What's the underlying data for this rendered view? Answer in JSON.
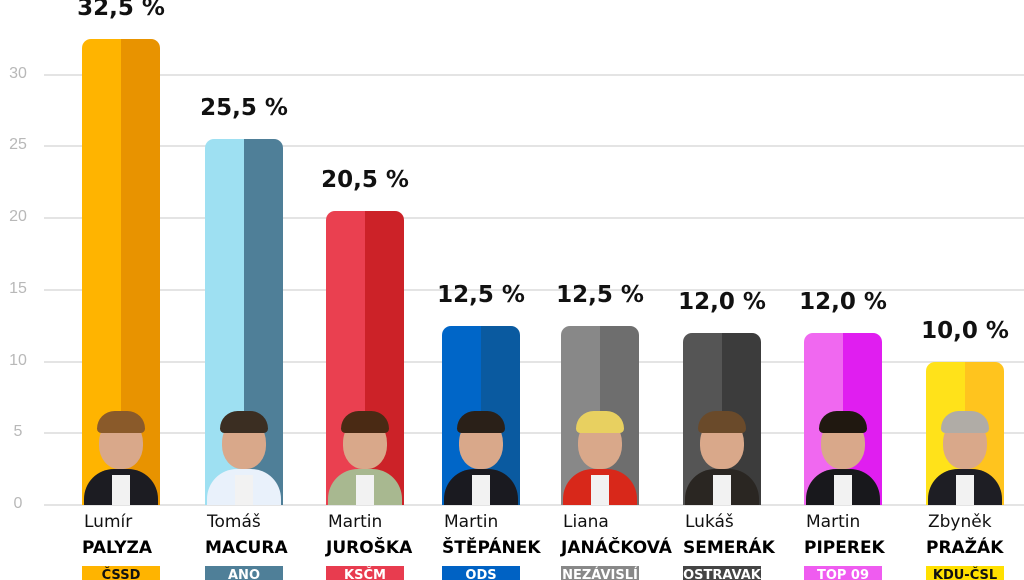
{
  "chart_data": {
    "type": "bar",
    "title": "",
    "xlabel": "",
    "ylabel": "",
    "ylim": [
      0,
      32.5
    ],
    "yticks": [
      0,
      5,
      10,
      15,
      20,
      25,
      30
    ],
    "grid": true,
    "categories": [
      "Lumír PALYZA",
      "Tomáš MACURA",
      "Martin JUROŠKA",
      "Martin ŠTĚPÁNEK",
      "Liana JANÁČKOVÁ",
      "Lukáš SEMERÁK",
      "Martin PIPEREK",
      "Zbyněk PRAŽÁK"
    ],
    "values": [
      32.5,
      25.5,
      20.5,
      12.5,
      12.5,
      12.0,
      12.0,
      10.0
    ],
    "value_labels": [
      "32,5 %",
      "25,5 %",
      "20,5 %",
      "12,5 %",
      "12,5 %",
      "12,0 %",
      "12,0 %",
      "10,0 %"
    ]
  },
  "ticks": [
    "0",
    "5",
    "10",
    "15",
    "20",
    "25",
    "30"
  ],
  "candidates": [
    {
      "first": "Lumír",
      "last": "PALYZA",
      "party": "ČSSD",
      "value": 32.5,
      "label": "32,5 %",
      "c1": "#ffb400",
      "c2": "#e89300",
      "party_color": "#ffb400",
      "party_text": "#111111"
    },
    {
      "first": "Tomáš",
      "last": "MACURA",
      "party": "ANO",
      "value": 25.5,
      "label": "25,5 %",
      "c1": "#9ee0f2",
      "c2": "#4f7f98",
      "party_color": "#4f7f98",
      "party_text": "#ffffff"
    },
    {
      "first": "Martin",
      "last": "JUROŠKA",
      "party": "KSČM",
      "value": 20.5,
      "label": "20,5 %",
      "c1": "#ea4050",
      "c2": "#cc2228",
      "party_color": "#e83c4f",
      "party_text": "#ffffff"
    },
    {
      "first": "Martin",
      "last": "ŠTĚPÁNEK",
      "party": "ODS",
      "value": 12.5,
      "label": "12,5 %",
      "c1": "#0066c8",
      "c2": "#0a5aa0",
      "party_color": "#0062c4",
      "party_text": "#ffffff"
    },
    {
      "first": "Liana",
      "last": "JANÁČKOVÁ",
      "party": "NEZÁVISLÍ",
      "value": 12.5,
      "label": "12,5 %",
      "c1": "#888888",
      "c2": "#6e6e6e",
      "party_color": "#888888",
      "party_text": "#ffffff"
    },
    {
      "first": "Lukáš",
      "last": "SEMERÁK",
      "party": "OSTRAVAK",
      "value": 12.0,
      "label": "12,0 %",
      "c1": "#555555",
      "c2": "#3c3c3c",
      "party_color": "#444444",
      "party_text": "#ffffff"
    },
    {
      "first": "Martin",
      "last": "PIPEREK",
      "party": "TOP 09",
      "value": 12.0,
      "label": "12,0 %",
      "c1": "#f068f0",
      "c2": "#e01ef0",
      "party_color": "#ef5cf0",
      "party_text": "#ffffff"
    },
    {
      "first": "Zbyněk",
      "last": "PRAŽÁK",
      "party": "KDU-ČSL",
      "value": 10.0,
      "label": "10,0 %",
      "c1": "#ffe21a",
      "c2": "#ffc41e",
      "party_color": "#ffe000",
      "party_text": "#111111"
    }
  ]
}
